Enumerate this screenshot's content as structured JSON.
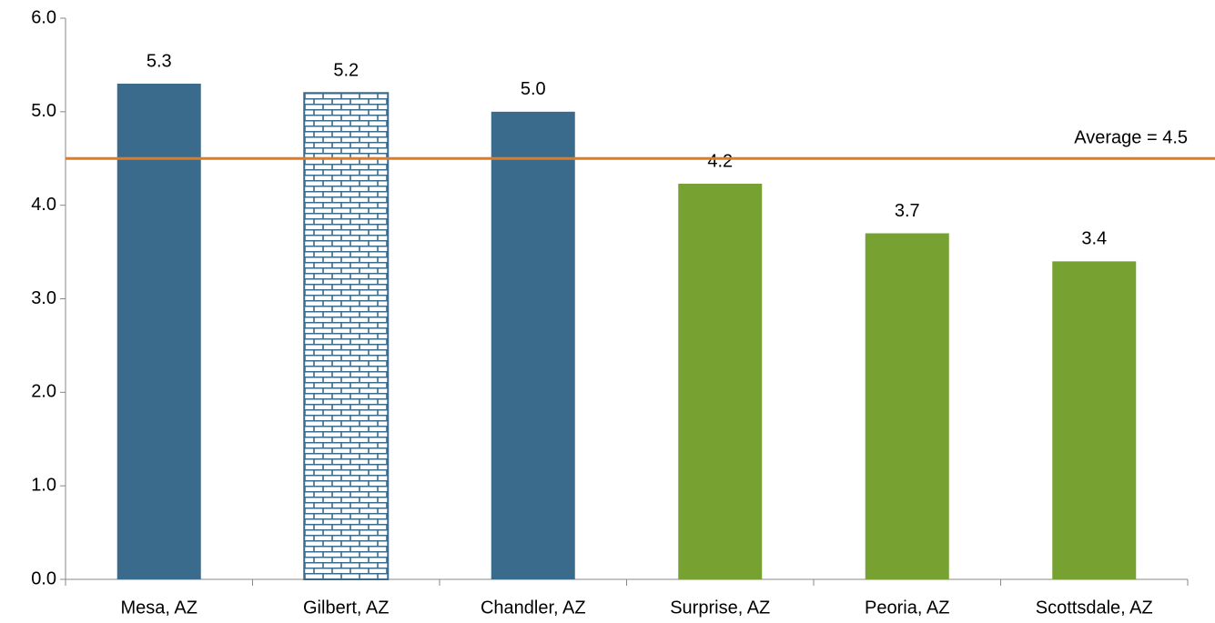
{
  "chart_data": {
    "type": "bar",
    "categories": [
      "Mesa, AZ",
      "Gilbert, AZ",
      "Chandler, AZ",
      "Surprise, AZ",
      "Peoria, AZ",
      "Scottsdale, AZ"
    ],
    "values": [
      5.3,
      5.2,
      5.0,
      4.23,
      3.7,
      3.4
    ],
    "value_labels": [
      "5.3",
      "5.2",
      "5.0",
      "4.2",
      "3.7",
      "3.4"
    ],
    "colors": [
      "#3b6b8c",
      "#3b6b8c",
      "#3b6b8c",
      "#77a232",
      "#77a232",
      "#77a232"
    ],
    "patterns": [
      null,
      "brick",
      null,
      null,
      null,
      null
    ],
    "ylim": [
      0,
      6
    ],
    "yticks": [
      {
        "value": 0,
        "label": "0.0"
      },
      {
        "value": 1,
        "label": "1.0"
      },
      {
        "value": 2,
        "label": "2.0"
      },
      {
        "value": 3,
        "label": "3.0"
      },
      {
        "value": 4,
        "label": "4.0"
      },
      {
        "value": 5,
        "label": "5.0"
      },
      {
        "value": 6,
        "label": "6.0"
      }
    ],
    "reference_line": {
      "value": 4.5,
      "label": "Average = 4.5",
      "color": "#e07b24"
    },
    "grid": false
  }
}
